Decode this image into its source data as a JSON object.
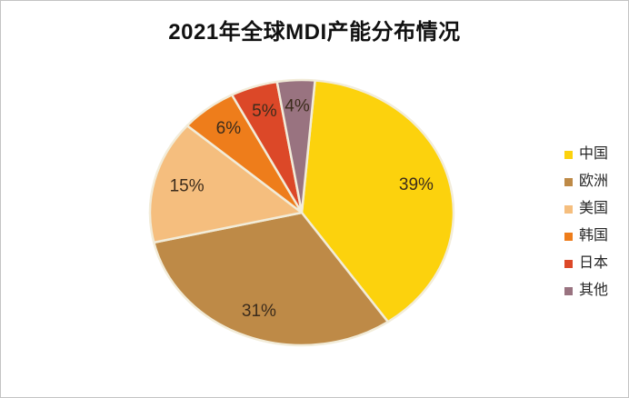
{
  "figure": {
    "background": "#ffffff",
    "border_color": "#c4c4c4"
  },
  "chart_data": {
    "type": "pie",
    "title": "2021年全球MDI产能分布情况",
    "categories": [
      "中国",
      "欧洲",
      "美国",
      "韩国",
      "日本",
      "其他"
    ],
    "values": [
      39,
      31,
      15,
      6,
      5,
      4
    ],
    "labels": [
      "39%",
      "31%",
      "15%",
      "6%",
      "5%",
      "4%"
    ],
    "unit": "%",
    "colors": [
      "#FCD20D",
      "#BE8A47",
      "#F5BE7E",
      "#EE7D1B",
      "#DC4828",
      "#997380"
    ],
    "slice_border_color": "#F2ECD9",
    "label_color": "#3C2C1C",
    "title_color": "#111111",
    "legend_text_color": "#262626",
    "legend_position": "right",
    "start_angle_deg": 5,
    "grid": false
  }
}
